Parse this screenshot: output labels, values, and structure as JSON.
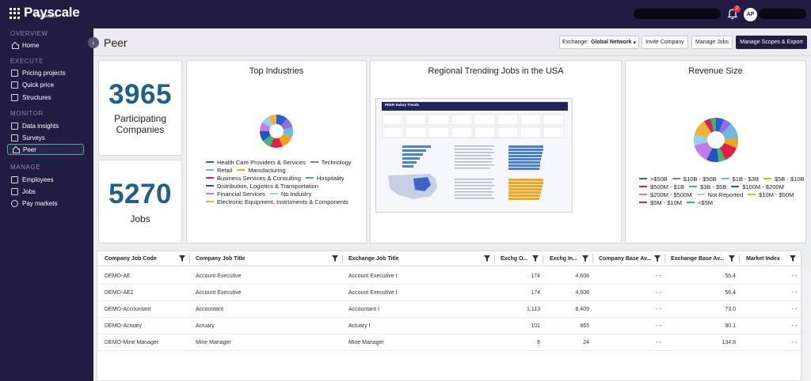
{
  "app": {
    "logo_text": "Payscale",
    "logo_sub": "Payfactors",
    "notifications_count": "2",
    "avatar_initials": "AP"
  },
  "sidebar": {
    "sections": [
      {
        "label": "OVERVIEW",
        "items": [
          {
            "label": "Home",
            "icon": "home-icon"
          }
        ]
      },
      {
        "label": "EXECUTE",
        "items": [
          {
            "label": "Pricing projects",
            "icon": "grid-icon"
          },
          {
            "label": "Quick price",
            "icon": "grid-icon"
          },
          {
            "label": "Structures",
            "icon": "grid-icon"
          }
        ]
      },
      {
        "label": "MONITOR",
        "items": [
          {
            "label": "Data insights",
            "icon": "grid-icon"
          },
          {
            "label": "Surveys",
            "icon": "grid-icon"
          },
          {
            "label": "Peer",
            "icon": "home-icon",
            "active": true
          }
        ]
      },
      {
        "label": "MANAGE",
        "items": [
          {
            "label": "Employees",
            "icon": "people-icon"
          },
          {
            "label": "Jobs",
            "icon": "list-icon"
          },
          {
            "label": "Pay markets",
            "icon": "globe-icon"
          }
        ]
      }
    ]
  },
  "header": {
    "title": "Peer",
    "exchange_label": "Exchange:",
    "exchange_value": "Global Network",
    "invite_label": "Invite Company",
    "manage_jobs_label": "Manage Jobs",
    "manage_scopes_label": "Manage Scopes & Export"
  },
  "stats": {
    "companies_value": "3965",
    "companies_label_1": "Participating",
    "companies_label_2": "Companies",
    "jobs_value": "5270",
    "jobs_label": "Jobs"
  },
  "industries": {
    "title": "Top Industries",
    "items": [
      {
        "label": "Health Care Providers & Services",
        "color": "#2f5bd9",
        "share": 11
      },
      {
        "label": "Technology",
        "color": "#8d6fe0",
        "share": 10
      },
      {
        "label": "Retail",
        "color": "#6fb7dc",
        "share": 10
      },
      {
        "label": "Manufacturing",
        "color": "#f0a418",
        "share": 13
      },
      {
        "label": "Business Services & Consulting",
        "color": "#e0204a",
        "share": 12
      },
      {
        "label": "Hospitality",
        "color": "#3dbb6c",
        "share": 9
      },
      {
        "label": "Distribution, Logistics & Transportation",
        "color": "#1f55c4",
        "share": 10
      },
      {
        "label": "Financial Services",
        "color": "#c27be6",
        "share": 9
      },
      {
        "label": "No Industry",
        "color": "#8fd3f0",
        "share": 8
      },
      {
        "label": "Electronic Equipment, Instruments & Components",
        "color": "#f2b233",
        "share": 8
      }
    ]
  },
  "regional": {
    "title": "Regional Trending Jobs in the USA",
    "report_title": "PEER Salary Trends"
  },
  "revenue": {
    "title": "Revenue Size",
    "items": [
      {
        "label": ">$50B",
        "color": "#2f5bd9",
        "share": 6
      },
      {
        "label": "$10B - $50B",
        "color": "#8d6fe0",
        "share": 6
      },
      {
        "label": "$1B - $3B",
        "color": "#6fb7dc",
        "share": 12
      },
      {
        "label": "$5B - $10B",
        "color": "#f0a418",
        "share": 7
      },
      {
        "label": "$500M - $1B",
        "color": "#e0204a",
        "share": 12
      },
      {
        "label": "$3B - $5B",
        "color": "#3dbb6c",
        "share": 5
      },
      {
        "label": "$100M - $200M",
        "color": "#1f55c4",
        "share": 9
      },
      {
        "label": "$200M - $500M",
        "color": "#c27be6",
        "share": 14
      },
      {
        "label": "Not Reported",
        "color": "#8fd3f0",
        "share": 8
      },
      {
        "label": "$10M - $50M",
        "color": "#f2b233",
        "share": 12
      },
      {
        "label": "$5M - $10M",
        "color": "#d6205a",
        "share": 5
      },
      {
        "label": "<$5M",
        "color": "#33b56a",
        "share": 4
      }
    ]
  },
  "table": {
    "columns": [
      "Company Job Code",
      "Company Job Title",
      "Exchange Job Title",
      "Exchg O...",
      "Exchg In...",
      "Company Base Av...",
      "Exchange Base Av...",
      "Market Index"
    ],
    "rows": [
      [
        "DEMO-AE",
        "Account Executive",
        "Account Executive I",
        "174",
        "4,608",
        "- -",
        "56.4",
        "- -"
      ],
      [
        "DEMO-AE2",
        "Account Executive",
        "Account Executive I",
        "174",
        "4,608",
        "- -",
        "56.4",
        "- -"
      ],
      [
        "DEMO-Accountant",
        "Accountant",
        "Accountant I",
        "1,113",
        "8,409",
        "- -",
        "73.0",
        "- -"
      ],
      [
        "DEMO-Actuary",
        "Actuary",
        "Actuary I",
        "101",
        "865",
        "- -",
        "90.1",
        "- -"
      ],
      [
        "DEMO-Mine Manager",
        "Mine Manager",
        "Mine Manager",
        "6",
        "24",
        "- -",
        "134.8",
        "- -"
      ]
    ]
  }
}
